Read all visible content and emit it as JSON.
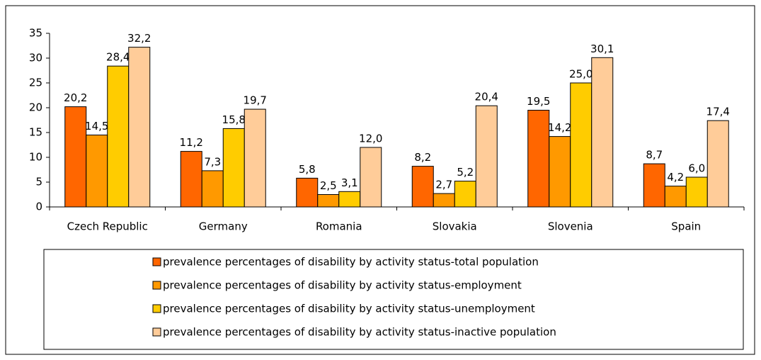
{
  "chart_data": {
    "type": "bar",
    "categories": [
      "Czech Republic",
      "Germany",
      "Romania",
      "Slovakia",
      "Slovenia",
      "Spain"
    ],
    "series": [
      {
        "name": "prevalence percentages of disability by activity status-total population",
        "color": "#ff6600",
        "values": [
          20.2,
          11.2,
          5.8,
          8.2,
          19.5,
          8.7
        ],
        "value_labels": [
          "20,2",
          "11,2",
          "5,8",
          "8,2",
          "19,5",
          "8,7"
        ]
      },
      {
        "name": "prevalence percentages of disability by activity status-employment",
        "color": "#ff9900",
        "values": [
          14.5,
          7.3,
          2.5,
          2.7,
          14.2,
          4.2
        ],
        "value_labels": [
          "14,5",
          "7,3",
          "2,5",
          "2,7",
          "14,2",
          "4,2"
        ]
      },
      {
        "name": "prevalence percentages of disability by activity status-unemployment",
        "color": "#ffcc00",
        "values": [
          28.4,
          15.8,
          3.1,
          5.2,
          25.0,
          6.0
        ],
        "value_labels": [
          "28,4",
          "15,8",
          "3,1",
          "5,2",
          "25,0",
          "6,0"
        ]
      },
      {
        "name": "prevalence percentages of disability by activity status-inactive population",
        "color": "#ffcc99",
        "values": [
          32.2,
          19.7,
          12.0,
          20.4,
          30.1,
          17.4
        ],
        "value_labels": [
          "32,2",
          "19,7",
          "12,0",
          "20,4",
          "30,1",
          "17,4"
        ]
      }
    ],
    "ylim": [
      0,
      35
    ],
    "yticks": [
      0,
      5,
      10,
      15,
      20,
      25,
      30,
      35
    ],
    "grid": false,
    "legend": "bottom"
  }
}
